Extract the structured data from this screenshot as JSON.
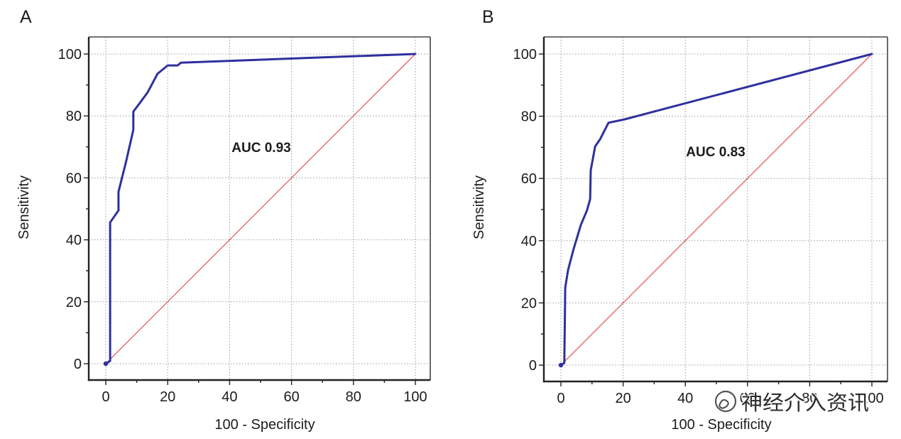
{
  "chart_data": [
    {
      "type": "line",
      "label": "A",
      "xlabel": "100 - Specificity",
      "ylabel": "Sensitivity",
      "annotation": "AUC 0.93",
      "xlim": [
        0,
        100
      ],
      "ylim": [
        0,
        100
      ],
      "xticks": [
        0,
        20,
        40,
        60,
        80,
        100
      ],
      "yticks": [
        0,
        20,
        40,
        60,
        80,
        100
      ],
      "grid": true,
      "series": [
        {
          "color": "#e35b5b",
          "x": [
            0,
            100
          ],
          "y": [
            0,
            100
          ]
        },
        {
          "color": "#2f2f9f",
          "x": [
            0,
            1.4,
            1.4,
            4.1,
            4.1,
            6.5,
            8.9,
            8.9,
            11.0,
            13.5,
            16.7,
            20.0,
            23.2,
            24.3,
            100
          ],
          "y": [
            0,
            0.9,
            45.6,
            49.5,
            55.5,
            65.0,
            75.5,
            81.4,
            84.2,
            87.6,
            93.6,
            96.3,
            96.3,
            97.2,
            100
          ]
        }
      ]
    },
    {
      "type": "line",
      "label": "B",
      "xlabel": "100 - Specificity",
      "ylabel": "Sensitivity",
      "annotation": "AUC 0.83",
      "xlim": [
        0,
        100
      ],
      "ylim": [
        0,
        100
      ],
      "xticks": [
        0,
        20,
        40,
        60,
        80,
        100
      ],
      "yticks": [
        0,
        20,
        40,
        60,
        80,
        100
      ],
      "grid": true,
      "series": [
        {
          "color": "#e35b5b",
          "x": [
            0,
            100
          ],
          "y": [
            0,
            100
          ]
        },
        {
          "color": "#2f2f9f",
          "x": [
            0,
            1.1,
            1.4,
            2.3,
            4.1,
            6.4,
            8.4,
            9.4,
            9.6,
            11.0,
            12.6,
            15.3,
            20.5,
            100
          ],
          "y": [
            0,
            0.7,
            24.9,
            30.6,
            37.4,
            45.0,
            49.8,
            53.4,
            62.6,
            70.3,
            72.6,
            77.9,
            79.0,
            100
          ]
        }
      ]
    }
  ],
  "watermark": {
    "text": "神经介入资讯",
    "icon": "wechat-icon",
    "color": "#2b2b2b"
  }
}
